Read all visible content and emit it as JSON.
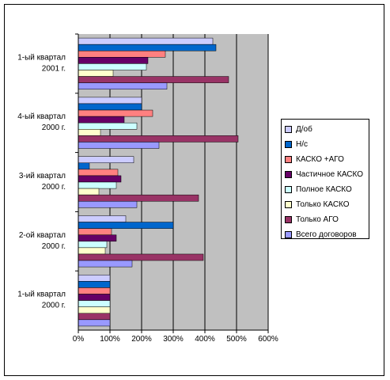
{
  "chart_data": {
    "type": "bar",
    "orientation": "horizontal",
    "categories": [
      "1-ый квартал 2000 г.",
      "2-ой квартал 2000 г.",
      "3-ий квартал 2000 г.",
      "4-ый квартал 2000 г.",
      "1-ый квартал 2001 г."
    ],
    "category_lines": [
      [
        "1-ый квартал",
        "2000 г."
      ],
      [
        "2-ой квартал",
        "2000 г."
      ],
      [
        "3-ий квартал",
        "2000 г."
      ],
      [
        "4-ый квартал",
        "2000 г."
      ],
      [
        "1-ый квартал",
        "2001 г."
      ]
    ],
    "series": [
      {
        "name": "Д/об",
        "color": "#ccccff",
        "values": [
          100,
          150,
          175,
          200,
          425
        ]
      },
      {
        "name": "Н/с",
        "color": "#0066cc",
        "values": [
          100,
          300,
          35,
          200,
          435
        ]
      },
      {
        "name": "КАСКО +АГО",
        "color": "#ff8080",
        "values": [
          100,
          105,
          125,
          235,
          275
        ]
      },
      {
        "name": "Частичное КАСКО",
        "color": "#660066",
        "values": [
          100,
          120,
          135,
          145,
          220
        ]
      },
      {
        "name": "Полное КАСКО",
        "color": "#ccffff",
        "values": [
          100,
          90,
          120,
          185,
          215
        ]
      },
      {
        "name": "Только КАСКО",
        "color": "#ffffcc",
        "values": [
          100,
          85,
          65,
          70,
          110
        ]
      },
      {
        "name": "Только АГО",
        "color": "#993366",
        "values": [
          100,
          395,
          380,
          505,
          475
        ]
      },
      {
        "name": "Всего договоров",
        "color": "#9999ff",
        "values": [
          100,
          170,
          185,
          255,
          280
        ]
      }
    ],
    "xlim": [
      0,
      600
    ],
    "xticks": [
      0,
      100,
      200,
      300,
      400,
      500,
      600
    ],
    "xtick_labels": [
      "0%",
      "100%",
      "200%",
      "300%",
      "400%",
      "500%",
      "600%"
    ],
    "plot_background": "#c0c0c0",
    "grid": true,
    "legend_position": "right"
  }
}
